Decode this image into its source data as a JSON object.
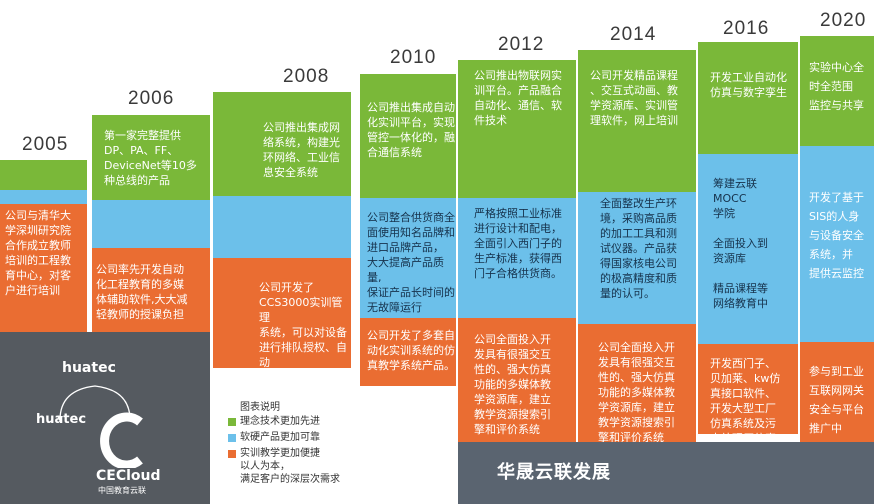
{
  "title": "华晟云联发展",
  "colors": {
    "tech": "#7ab839",
    "soft": "#6cc0ea",
    "teach": "#ea6d32",
    "panel": "#555a60"
  },
  "legend": {
    "title": "图表说明",
    "items": [
      {
        "label": "理念技术更加先进",
        "color": "#7ab839"
      },
      {
        "label": "软硬产品更加可靠",
        "color": "#6cc0ea"
      },
      {
        "label": "实训教学更加便捷\n以人为本，\n满足客户的深层次需求",
        "color": "#ea6d32"
      }
    ]
  },
  "logos": {
    "huatec_top": "huatec",
    "huatec_left": "huatec",
    "cecloud": "CECloud",
    "cecloud_cn": "中国教育云联"
  },
  "milestones": [
    {
      "year": "2005",
      "tech": "",
      "soft": "",
      "teach": "公司与清华大\n学深圳研究院\n合作成立教师\n培训的工程教\n育中心，对客\n户进行培训"
    },
    {
      "year": "2006",
      "tech": "第一家完整提供\nDP、PA、FF、\nDeviceNet等10多\n种总线的产品",
      "soft": "",
      "teach": "公司率先开发自动\n化工程教育的多媒\n体辅助软件,大大减\n轻教师的授课负担"
    },
    {
      "year": "2008",
      "tech": "公司推出集成网\n络系统，构建光\n环网络、工业信\n息安全系统",
      "soft": "",
      "teach": "公司开发了\nCCS3000实训管理\n系统，可以对设备\n进行排队授权、自动\n管理"
    },
    {
      "year": "2010",
      "tech": "公司推出集成自动\n化实训平台，实现\n管控一体化的，融\n合通信系统",
      "soft": "公司整合供货商全\n面使用知名品牌和\n进口品牌产品，\n大大提高产品质量,\n保证产品长时间的\n无故障运行",
      "teach": "公司开发了多套自\n动化实训系统的仿\n真教学系统产品。"
    },
    {
      "year": "2012",
      "tech": "公司推出物联网实\n训平台。产品融合\n自动化、通信、软\n件技术",
      "soft": "严格按照工业标准\n进行设计和配电，\n全面引入西门子的\n生产标准，获得西\n门子合格供货商。",
      "teach": "公司全面投入开\n发具有很强交互\n性的、强大仿真\n功能的多媒体教\n学资源库，建立\n教学资源搜索引\n擎和评价系统"
    },
    {
      "year": "2014",
      "tech": "公司开发精品课程\n、交互式动画、教\n学资源库、实训管\n理软件，网上培训",
      "soft": "全面整改生产环\n境，采购高品质\n的加工工具和测\n试仪器。产品获\n得国家核电公司\n的极高精度和质\n量的认可。",
      "teach": "公司全面投入开\n发具有很强交互\n性的、强大仿真\n功能的多媒体教\n学资源库，建立\n教学资源搜索引\n擎和评价系统"
    },
    {
      "year": "2016",
      "tech": "开发工业自动化\n仿真与数字孪生",
      "soft": "筹建云联\nMOCC\n学院\n\n全面投入到\n资源库\n\n精品课程等\n网络教育中",
      "teach": "开发西门子、\n贝加莱、kw仿\n真接口软件、\n开发大型工厂\n仿真系统及污\n水处理厂仿真"
    },
    {
      "year": "2020",
      "tech": "实验中心全\n时全范围\n监控与共享",
      "soft": "开发了基于\nSIS的人身\n与设备安全\n系统，并\n提供云监控",
      "teach": "参与到工业\n互联网网关\n安全与平台\n推广中"
    }
  ]
}
